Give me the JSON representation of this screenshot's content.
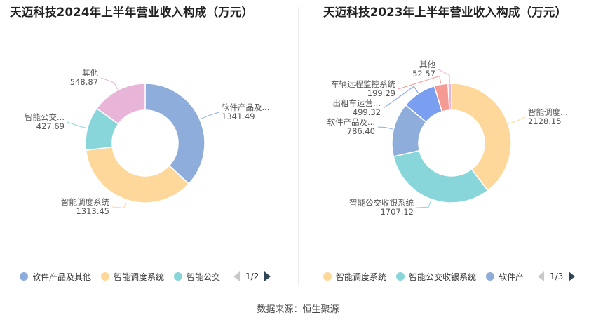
{
  "chart_data": [
    {
      "type": "pie",
      "variant": "donut",
      "title": "天迈科技2024年上半年营业收入构成（万元）",
      "slices": [
        {
          "name": "软件产品及其他",
          "label": "软件产品及...",
          "value": 1341.49,
          "value_label": "1341.49",
          "color": "#8eaddb"
        },
        {
          "name": "智能调度系统",
          "label": "智能调度系统",
          "value": 1313.45,
          "value_label": "1313.45",
          "color": "#fed89a"
        },
        {
          "name": "智能公交收银系统",
          "label": "智能公交...",
          "value": 427.69,
          "value_label": "427.69",
          "color": "#88d6da"
        },
        {
          "name": "其他",
          "label": "其他",
          "value": 548.87,
          "value_label": "548.87",
          "color": "#e8b4d8"
        }
      ],
      "legend": {
        "placement": "bottom",
        "items": [
          {
            "label": "软件产品及其他",
            "color": "#8eaddb"
          },
          {
            "label": "智能调度系统",
            "color": "#fed89a"
          },
          {
            "label": "智能公交",
            "color": "#88d6da"
          }
        ],
        "page": "1/2"
      }
    },
    {
      "type": "pie",
      "variant": "donut",
      "title": "天迈科技2023年上半年营业收入构成（万元）",
      "slices": [
        {
          "name": "智能调度系统",
          "label": "智能调度...",
          "value": 2128.15,
          "value_label": "2128.15",
          "color": "#fed89a"
        },
        {
          "name": "智能公交收银系统",
          "label": "智能公交收银系统",
          "value": 1707.12,
          "value_label": "1707.12",
          "color": "#88d6da"
        },
        {
          "name": "软件产品及其他",
          "label": "软件产品及...",
          "value": 786.4,
          "value_label": "786.40",
          "color": "#8eaddb"
        },
        {
          "name": "出租车运营",
          "label": "出租车运营...",
          "value": 499.32,
          "value_label": "499.32",
          "color": "#7b9ff0"
        },
        {
          "name": "车辆远程监控系统",
          "label": "车辆远程监控系统",
          "value": 199.29,
          "value_label": "199.29",
          "color": "#f59b93"
        },
        {
          "name": "其他",
          "label": "其他",
          "value": 52.57,
          "value_label": "52.57",
          "color": "#e8b4d8"
        }
      ],
      "legend": {
        "placement": "bottom",
        "items": [
          {
            "label": "智能调度系统",
            "color": "#fed89a"
          },
          {
            "label": "智能公交收银系统",
            "color": "#88d6da"
          },
          {
            "label": "软件产",
            "color": "#8eaddb"
          }
        ],
        "page": "1/3"
      }
    }
  ],
  "source": "数据来源：恒生聚源"
}
